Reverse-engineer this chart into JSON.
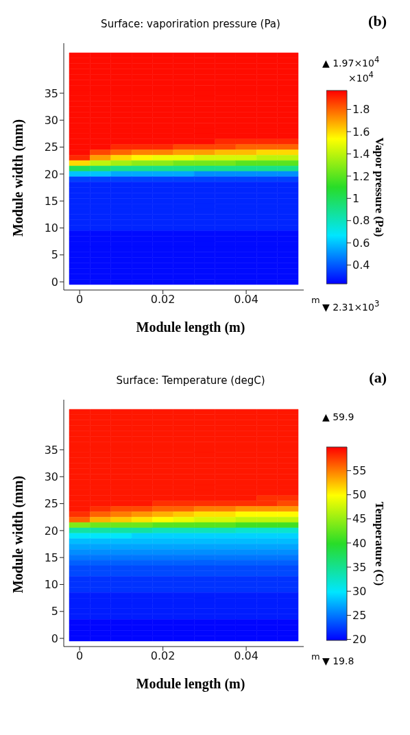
{
  "chart_data": [
    {
      "type": "heatmap",
      "title": "Surface: vaporiration pressure (Pa)",
      "xlabel": "Module length (m)",
      "ylabel": "Module width (mm)",
      "clabel": "Vapor pressure (Pa)",
      "annotations": [
        "(b)",
        "m",
        "▲ 1.97×10$^{4}$",
        "▼ 2.31×10$^{3}$",
        "×10$^{4}$"
      ],
      "categories": [
        "0",
        null,
        null,
        null,
        "0.02",
        null,
        null,
        null,
        "0.04",
        null,
        null
      ],
      "y_categories": [
        null,
        null,
        null,
        null,
        null,
        null,
        null,
        "35",
        null,
        null,
        null,
        null,
        "30",
        null,
        null,
        null,
        null,
        "25",
        null,
        null,
        null,
        null,
        "20",
        null,
        null,
        null,
        null,
        "15",
        null,
        null,
        null,
        null,
        "10",
        null,
        null,
        null,
        null,
        "5",
        null,
        null,
        null,
        null,
        "0"
      ],
      "clim": [
        0.231,
        1.97
      ],
      "cticks": [
        0.4,
        0.6,
        0.8,
        1,
        1.2,
        1.4,
        1.6,
        1.8
      ],
      "cells": [
        [
          1.95,
          1.95,
          1.95,
          1.95,
          1.95,
          1.95,
          1.95,
          1.95,
          1.95,
          1.95,
          1.95
        ],
        [
          1.95,
          1.95,
          1.95,
          1.95,
          1.95,
          1.95,
          1.95,
          1.95,
          1.95,
          1.95,
          1.95
        ],
        [
          1.95,
          1.95,
          1.95,
          1.95,
          1.95,
          1.95,
          1.95,
          1.95,
          1.95,
          1.95,
          1.95
        ],
        [
          1.95,
          1.95,
          1.95,
          1.95,
          1.95,
          1.95,
          1.95,
          1.95,
          1.95,
          1.95,
          1.95
        ],
        [
          1.95,
          1.95,
          1.95,
          1.95,
          1.95,
          1.95,
          1.95,
          1.95,
          1.95,
          1.95,
          1.95
        ],
        [
          1.95,
          1.95,
          1.95,
          1.95,
          1.95,
          1.95,
          1.95,
          1.95,
          1.95,
          1.95,
          1.95
        ],
        [
          1.95,
          1.95,
          1.95,
          1.95,
          1.95,
          1.95,
          1.95,
          1.95,
          1.95,
          1.95,
          1.95
        ],
        [
          1.95,
          1.95,
          1.95,
          1.95,
          1.95,
          1.95,
          1.95,
          1.95,
          1.95,
          1.95,
          1.95
        ],
        [
          1.95,
          1.95,
          1.95,
          1.95,
          1.95,
          1.95,
          1.95,
          1.95,
          1.95,
          1.95,
          1.95
        ],
        [
          1.95,
          1.95,
          1.95,
          1.95,
          1.95,
          1.95,
          1.95,
          1.95,
          1.95,
          1.95,
          1.95
        ],
        [
          1.95,
          1.95,
          1.95,
          1.95,
          1.95,
          1.95,
          1.95,
          1.95,
          1.95,
          1.95,
          1.95
        ],
        [
          1.95,
          1.95,
          1.95,
          1.95,
          1.95,
          1.95,
          1.95,
          1.95,
          1.95,
          1.95,
          1.95
        ],
        [
          1.95,
          1.95,
          1.95,
          1.95,
          1.95,
          1.95,
          1.95,
          1.95,
          1.95,
          1.95,
          1.95
        ],
        [
          1.95,
          1.95,
          1.95,
          1.95,
          1.95,
          1.95,
          1.95,
          1.95,
          1.95,
          1.95,
          1.95
        ],
        [
          1.95,
          1.95,
          1.95,
          1.95,
          1.95,
          1.95,
          1.95,
          1.95,
          1.95,
          1.95,
          1.95
        ],
        [
          1.95,
          1.95,
          1.95,
          1.95,
          1.95,
          1.95,
          1.95,
          1.95,
          1.95,
          1.95,
          1.95
        ],
        [
          1.95,
          1.95,
          1.95,
          1.95,
          1.95,
          1.95,
          1.95,
          1.9,
          1.9,
          1.9,
          1.9
        ],
        [
          1.95,
          1.95,
          1.9,
          1.9,
          1.9,
          1.85,
          1.85,
          1.85,
          1.8,
          1.8,
          1.8
        ],
        [
          1.95,
          1.85,
          1.8,
          1.75,
          1.75,
          1.7,
          1.7,
          1.65,
          1.65,
          1.6,
          1.6
        ],
        [
          1.9,
          1.7,
          1.6,
          1.55,
          1.5,
          1.5,
          1.45,
          1.45,
          1.45,
          1.4,
          1.4
        ],
        [
          1.6,
          1.4,
          1.35,
          1.3,
          1.3,
          1.25,
          1.25,
          1.25,
          1.2,
          1.2,
          1.2
        ],
        [
          1,
          0.95,
          0.9,
          0.9,
          0.9,
          0.9,
          0.9,
          0.9,
          0.9,
          0.9,
          0.9
        ],
        [
          0.6,
          0.6,
          0.55,
          0.55,
          0.55,
          0.55,
          0.5,
          0.5,
          0.5,
          0.5,
          0.5
        ],
        [
          0.35,
          0.35,
          0.35,
          0.35,
          0.35,
          0.35,
          0.35,
          0.35,
          0.35,
          0.35,
          0.35
        ],
        [
          0.3,
          0.3,
          0.3,
          0.3,
          0.3,
          0.3,
          0.3,
          0.3,
          0.3,
          0.3,
          0.3
        ],
        [
          0.3,
          0.3,
          0.3,
          0.3,
          0.3,
          0.3,
          0.3,
          0.3,
          0.3,
          0.3,
          0.3
        ],
        [
          0.3,
          0.3,
          0.3,
          0.3,
          0.3,
          0.3,
          0.3,
          0.3,
          0.3,
          0.3,
          0.3
        ],
        [
          0.3,
          0.3,
          0.3,
          0.3,
          0.3,
          0.3,
          0.3,
          0.3,
          0.3,
          0.3,
          0.3
        ],
        [
          0.3,
          0.3,
          0.3,
          0.3,
          0.3,
          0.3,
          0.3,
          0.3,
          0.3,
          0.3,
          0.3
        ],
        [
          0.3,
          0.3,
          0.3,
          0.3,
          0.3,
          0.3,
          0.3,
          0.3,
          0.3,
          0.3,
          0.3
        ],
        [
          0.3,
          0.3,
          0.3,
          0.3,
          0.3,
          0.3,
          0.3,
          0.3,
          0.3,
          0.3,
          0.3
        ],
        [
          0.3,
          0.3,
          0.3,
          0.3,
          0.3,
          0.3,
          0.3,
          0.3,
          0.3,
          0.3,
          0.3
        ],
        [
          0.3,
          0.3,
          0.3,
          0.3,
          0.3,
          0.3,
          0.3,
          0.3,
          0.3,
          0.3,
          0.3
        ],
        [
          0.25,
          0.25,
          0.25,
          0.25,
          0.25,
          0.25,
          0.25,
          0.25,
          0.25,
          0.25,
          0.25
        ],
        [
          0.25,
          0.25,
          0.25,
          0.25,
          0.25,
          0.25,
          0.25,
          0.25,
          0.25,
          0.25,
          0.25
        ],
        [
          0.25,
          0.25,
          0.25,
          0.25,
          0.25,
          0.25,
          0.25,
          0.25,
          0.25,
          0.25,
          0.25
        ],
        [
          0.25,
          0.25,
          0.25,
          0.25,
          0.25,
          0.25,
          0.25,
          0.25,
          0.25,
          0.25,
          0.25
        ],
        [
          0.25,
          0.25,
          0.25,
          0.25,
          0.25,
          0.25,
          0.25,
          0.25,
          0.25,
          0.25,
          0.25
        ],
        [
          0.25,
          0.25,
          0.25,
          0.25,
          0.25,
          0.25,
          0.25,
          0.25,
          0.25,
          0.25,
          0.25
        ],
        [
          0.25,
          0.25,
          0.25,
          0.25,
          0.25,
          0.25,
          0.25,
          0.25,
          0.25,
          0.25,
          0.25
        ],
        [
          0.25,
          0.25,
          0.25,
          0.25,
          0.25,
          0.25,
          0.25,
          0.25,
          0.25,
          0.25,
          0.25
        ],
        [
          0.25,
          0.25,
          0.25,
          0.25,
          0.25,
          0.25,
          0.25,
          0.25,
          0.25,
          0.25,
          0.25
        ],
        [
          0.25,
          0.25,
          0.25,
          0.25,
          0.25,
          0.25,
          0.25,
          0.25,
          0.25,
          0.25,
          0.25
        ]
      ]
    },
    {
      "type": "heatmap",
      "title": "Surface: Temperature (degC)",
      "xlabel": "Module length (m)",
      "ylabel": "Module width (mm)",
      "clabel": "Temperature (C)",
      "annotations": [
        "(a)",
        "m",
        "▲ 59.9",
        "▼ 19.8"
      ],
      "categories": [
        "0",
        null,
        null,
        null,
        "0.02",
        null,
        null,
        null,
        "0.04",
        null,
        null
      ],
      "y_categories": [
        null,
        null,
        null,
        null,
        null,
        null,
        null,
        "35",
        null,
        null,
        null,
        null,
        "30",
        null,
        null,
        null,
        null,
        "25",
        null,
        null,
        null,
        null,
        "20",
        null,
        null,
        null,
        null,
        "15",
        null,
        null,
        null,
        null,
        "10",
        null,
        null,
        null,
        null,
        "5",
        null,
        null,
        null,
        null,
        "0"
      ],
      "clim": [
        19.8,
        59.9
      ],
      "cticks": [
        20,
        25,
        30,
        35,
        40,
        45,
        50,
        55
      ],
      "cells": [
        [
          59,
          59,
          59,
          59,
          59,
          59,
          59,
          59,
          59,
          59,
          59
        ],
        [
          59,
          59,
          59,
          59,
          59,
          59,
          59,
          59,
          59,
          59,
          59
        ],
        [
          59,
          59,
          59,
          59,
          59,
          59,
          59,
          59,
          59,
          59,
          59
        ],
        [
          59,
          59,
          59,
          59,
          59,
          59,
          59,
          59,
          59,
          59,
          59
        ],
        [
          59,
          59,
          59,
          59,
          59,
          59,
          59,
          59,
          59,
          59,
          59
        ],
        [
          59,
          59,
          59,
          59,
          59,
          59,
          59,
          59,
          59,
          59,
          59
        ],
        [
          59,
          59,
          59,
          59,
          59,
          59,
          59,
          59,
          59,
          59,
          59
        ],
        [
          59,
          59,
          59,
          59,
          59,
          59,
          59,
          59,
          59,
          59,
          59
        ],
        [
          59,
          59,
          59,
          59,
          59,
          59,
          59,
          59,
          59,
          59,
          59
        ],
        [
          59,
          59,
          59,
          59,
          59,
          59,
          59,
          59,
          59,
          59,
          59
        ],
        [
          59,
          59,
          59,
          59,
          59,
          59,
          59,
          59,
          59,
          59,
          59
        ],
        [
          59,
          59,
          59,
          59,
          59,
          59,
          59,
          59,
          59,
          59,
          59
        ],
        [
          59,
          59,
          59,
          59,
          59,
          59,
          59,
          59,
          59,
          59,
          59
        ],
        [
          59,
          59,
          59,
          59,
          59,
          59,
          59,
          59,
          59,
          59,
          59
        ],
        [
          59,
          59,
          59,
          59,
          59,
          59,
          59,
          59,
          59,
          59,
          59
        ],
        [
          59,
          59,
          59,
          59,
          59,
          59,
          59,
          59,
          59,
          59,
          59
        ],
        [
          59,
          59,
          59,
          59,
          59,
          59,
          59,
          59,
          59,
          58,
          58
        ],
        [
          59,
          59,
          59,
          59,
          58,
          58,
          58,
          58,
          58,
          58,
          57
        ],
        [
          59,
          58,
          57,
          57,
          56,
          56,
          55,
          55,
          54,
          54,
          54
        ],
        [
          58,
          56,
          55,
          54,
          53,
          52,
          51,
          51,
          50,
          50,
          50
        ],
        [
          56,
          53,
          52,
          51,
          50,
          49,
          48,
          48,
          47,
          47,
          47
        ],
        [
          44,
          43,
          43,
          43,
          42,
          42,
          42,
          42,
          41,
          41,
          41
        ],
        [
          34,
          34,
          34,
          34,
          33,
          33,
          33,
          33,
          32,
          32,
          32
        ],
        [
          30,
          30,
          30,
          29,
          29,
          29,
          29,
          29,
          29,
          29,
          29
        ],
        [
          28,
          28,
          28,
          28,
          28,
          28,
          28,
          28,
          28,
          28,
          28
        ],
        [
          27,
          27,
          27,
          27,
          27,
          27,
          27,
          27,
          27,
          27,
          27
        ],
        [
          26,
          26,
          26,
          26,
          26,
          26,
          26,
          26,
          26,
          26,
          26
        ],
        [
          25,
          25,
          25,
          25,
          25,
          25,
          25,
          25,
          25,
          25,
          25
        ],
        [
          24,
          24,
          24,
          24,
          24,
          24,
          24,
          24,
          24,
          24,
          24
        ],
        [
          23,
          23,
          23,
          23,
          23,
          23,
          23,
          23,
          23,
          23,
          23
        ],
        [
          23,
          23,
          23,
          23,
          23,
          23,
          23,
          23,
          23,
          23,
          23
        ],
        [
          22,
          22,
          22,
          22,
          22,
          22,
          22,
          22,
          22,
          22,
          22
        ],
        [
          22,
          22,
          22,
          22,
          22,
          22,
          22,
          22,
          22,
          22,
          22
        ],
        [
          22,
          22,
          22,
          22,
          22,
          22,
          22,
          22,
          22,
          22,
          22
        ],
        [
          21,
          21,
          21,
          21,
          21,
          21,
          21,
          21,
          21,
          21,
          21
        ],
        [
          21,
          21,
          21,
          21,
          21,
          21,
          21,
          21,
          21,
          21,
          21
        ],
        [
          21,
          21,
          21,
          21,
          21,
          21,
          21,
          21,
          21,
          21,
          21
        ],
        [
          21,
          21,
          21,
          21,
          21,
          21,
          21,
          21,
          21,
          21,
          21
        ],
        [
          21,
          21,
          21,
          21,
          21,
          21,
          21,
          21,
          21,
          21,
          21
        ],
        [
          20,
          20,
          20,
          20,
          20,
          20,
          20,
          20,
          20,
          20,
          20
        ],
        [
          20,
          20,
          20,
          20,
          20,
          20,
          20,
          20,
          20,
          20,
          20
        ],
        [
          20,
          20,
          20,
          20,
          20,
          20,
          20,
          20,
          20,
          20,
          20
        ],
        [
          20,
          20,
          20,
          20,
          20,
          20,
          20,
          20,
          20,
          20,
          20
        ]
      ]
    }
  ]
}
